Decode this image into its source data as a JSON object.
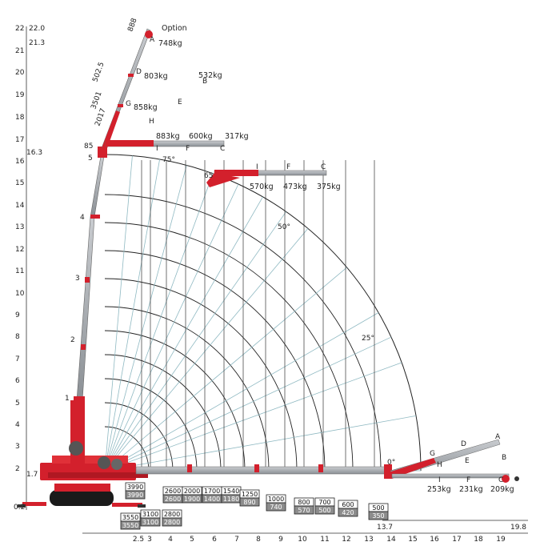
{
  "title_option": "Option",
  "y_axis": {
    "ticks": [
      "0.2",
      "1.7",
      "2",
      "3",
      "4",
      "5",
      "6",
      "7",
      "8",
      "9",
      "10",
      "11",
      "12",
      "13",
      "14",
      "15",
      "16",
      "16.3",
      "17",
      "18",
      "19",
      "20",
      "21",
      "21.3",
      "22",
      "22.0"
    ]
  },
  "x_axis": {
    "ticks": [
      "2.5",
      "3",
      "4",
      "5",
      "6",
      "7",
      "8",
      "9",
      "10",
      "11",
      "12",
      "13",
      "13.7",
      "14",
      "15",
      "16",
      "17",
      "18",
      "19",
      "19.8"
    ]
  },
  "boom_sections": [
    "1",
    "2",
    "3",
    "4",
    "5"
  ],
  "angles": [
    "75°",
    "50°",
    "25°",
    "0°",
    "65"
  ],
  "dimensions": [
    "888",
    "502.5",
    "3501",
    "2017",
    "85"
  ],
  "jib_points_top": [
    {
      "letter": "A",
      "load": "748kg"
    },
    {
      "letter": "D",
      "load": "803kg"
    },
    {
      "letter": "B",
      "load": "532kg"
    },
    {
      "letter": "G",
      "load": "858kg"
    },
    {
      "letter": "E",
      "load": ""
    },
    {
      "letter": "H",
      "load": ""
    },
    {
      "letter": "I",
      "load": "883kg"
    },
    {
      "letter": "F",
      "load": "600kg"
    },
    {
      "letter": "C",
      "load": "317kg"
    }
  ],
  "jib_65": [
    {
      "letter": "I",
      "load": "570kg"
    },
    {
      "letter": "F",
      "load": "473kg"
    },
    {
      "letter": "C",
      "load": "375kg"
    }
  ],
  "jib_horizontal": [
    {
      "letter": "G",
      "load": ""
    },
    {
      "letter": "D",
      "load": ""
    },
    {
      "letter": "A",
      "load": ""
    },
    {
      "letter": "H",
      "load": ""
    },
    {
      "letter": "E",
      "load": ""
    },
    {
      "letter": "B",
      "load": ""
    },
    {
      "letter": "I",
      "load": "253kg"
    },
    {
      "letter": "F",
      "load": "231kg"
    },
    {
      "letter": "C",
      "load": "209kg"
    }
  ],
  "capacity_boxes": [
    {
      "top": "3990",
      "bottom": "3990"
    },
    {
      "top": "3550",
      "bottom": "3550"
    },
    {
      "top": "3100",
      "bottom": "3100"
    },
    {
      "top": "2800",
      "bottom": "2800"
    },
    {
      "top": "2600",
      "bottom": "2600"
    },
    {
      "top": "2000",
      "bottom": "1900"
    },
    {
      "top": "1700",
      "bottom": "1400"
    },
    {
      "top": "1540",
      "bottom": "1180"
    },
    {
      "top": "1250",
      "bottom": "890"
    },
    {
      "top": "1000",
      "bottom": "740"
    },
    {
      "top": "800",
      "bottom": "570"
    },
    {
      "top": "700",
      "bottom": "500"
    },
    {
      "top": "600",
      "bottom": "420"
    },
    {
      "top": "500",
      "bottom": "350"
    }
  ],
  "colors": {
    "crane_red": "#d3202c",
    "steel": "#9a9ea3",
    "grid": "#8fb9c2",
    "radius": "#222222"
  }
}
